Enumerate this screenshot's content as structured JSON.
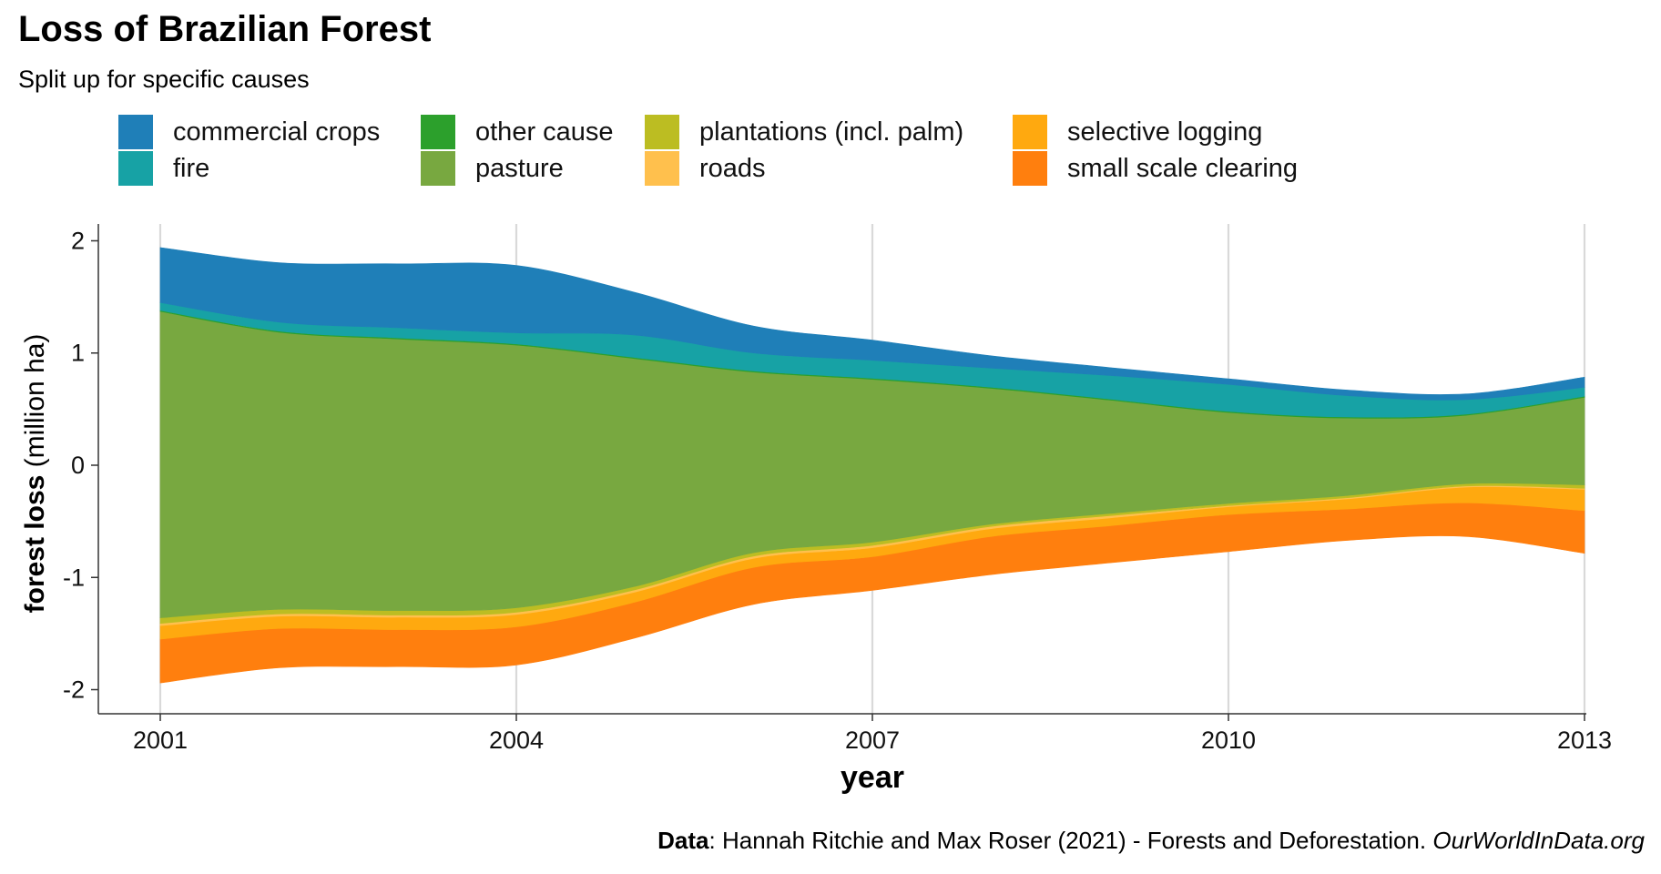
{
  "chart_data": {
    "type": "area",
    "subtype": "streamgraph",
    "title": "Loss of Brazilian Forest",
    "subtitle": "Split up for specific causes",
    "xlabel": "year",
    "ylabel_bold": "forest loss",
    "ylabel_rest": " (million ha)",
    "xlim": [
      2001,
      2013
    ],
    "ylim": [
      -2.15,
      2.15
    ],
    "x_ticks": [
      2001,
      2004,
      2007,
      2010,
      2013
    ],
    "y_ticks": [
      2,
      1,
      0,
      -1,
      -2
    ],
    "grid": "vertical major gridlines only",
    "legend_position": "top",
    "x": [
      2001,
      2002,
      2003,
      2004,
      2005,
      2006,
      2007,
      2008,
      2009,
      2010,
      2011,
      2012,
      2013
    ],
    "series_order_bottom_to_top": [
      "small scale clearing",
      "selective logging",
      "roads",
      "plantations (incl. palm)",
      "pasture",
      "other cause",
      "fire",
      "commercial crops"
    ],
    "series": [
      {
        "name": "commercial crops",
        "color": "#1F7FB8",
        "values": [
          0.49,
          0.53,
          0.57,
          0.6,
          0.38,
          0.24,
          0.18,
          0.11,
          0.07,
          0.05,
          0.05,
          0.05,
          0.09
        ]
      },
      {
        "name": "fire",
        "color": "#17A2A5",
        "values": [
          0.07,
          0.08,
          0.09,
          0.1,
          0.2,
          0.16,
          0.16,
          0.17,
          0.21,
          0.24,
          0.19,
          0.13,
          0.08
        ]
      },
      {
        "name": "other cause",
        "color": "#2CA02C",
        "values": [
          0.01,
          0.01,
          0.01,
          0.01,
          0.01,
          0.01,
          0.01,
          0.01,
          0.01,
          0.01,
          0.01,
          0.01,
          0.01
        ]
      },
      {
        "name": "pasture",
        "color": "#78A840",
        "values": [
          2.73,
          2.47,
          2.42,
          2.34,
          2.03,
          1.61,
          1.45,
          1.21,
          1.01,
          0.81,
          0.69,
          0.61,
          0.78
        ]
      },
      {
        "name": "plantations (incl. palm)",
        "color": "#BCBD22",
        "values": [
          0.05,
          0.04,
          0.04,
          0.04,
          0.03,
          0.03,
          0.03,
          0.02,
          0.02,
          0.02,
          0.02,
          0.02,
          0.03
        ]
      },
      {
        "name": "roads",
        "color": "#FFC04D",
        "values": [
          0.02,
          0.02,
          0.02,
          0.02,
          0.02,
          0.02,
          0.02,
          0.02,
          0.02,
          0.01,
          0.01,
          0.01,
          0.01
        ]
      },
      {
        "name": "selective logging",
        "color": "#FFA90F",
        "values": [
          0.12,
          0.11,
          0.11,
          0.11,
          0.09,
          0.08,
          0.08,
          0.07,
          0.07,
          0.07,
          0.09,
          0.14,
          0.19
        ]
      },
      {
        "name": "small scale clearing",
        "color": "#FF7F0E",
        "values": [
          0.39,
          0.35,
          0.33,
          0.34,
          0.32,
          0.33,
          0.3,
          0.34,
          0.33,
          0.33,
          0.28,
          0.3,
          0.38
        ]
      }
    ]
  },
  "legend": [
    {
      "label": "commercial crops",
      "color": "#1F7FB8"
    },
    {
      "label": "fire",
      "color": "#17A2A5"
    },
    {
      "label": "other cause",
      "color": "#2CA02C"
    },
    {
      "label": "pasture",
      "color": "#78A840"
    },
    {
      "label": "plantations (incl. palm)",
      "color": "#BCBD22"
    },
    {
      "label": "roads",
      "color": "#FFC04D"
    },
    {
      "label": "selective logging",
      "color": "#FFA90F"
    },
    {
      "label": "small scale clearing",
      "color": "#FF7F0E"
    }
  ],
  "caption": {
    "bold": "Data",
    "text": ": Hannah Ritchie and Max Roser (2021) - Forests and Deforestation. ",
    "italic": "OurWorldInData.org"
  }
}
